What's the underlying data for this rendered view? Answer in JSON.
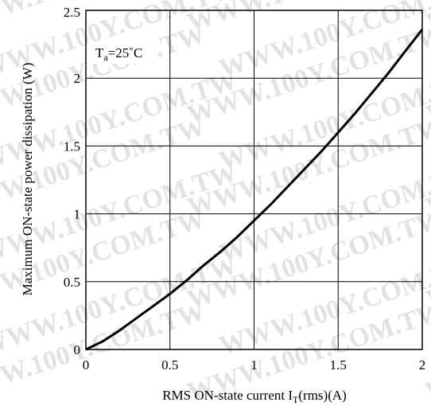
{
  "chart_data": {
    "type": "line",
    "title": "",
    "xlabel": "RMS ON-state current I",
    "xlabel_sub": "T",
    "xlabel_suffix": "(rms)(A)",
    "ylabel": "Maximum ON-state power dissipation (W)",
    "xlim": [
      0,
      2
    ],
    "ylim": [
      0,
      2.5
    ],
    "x_ticks": [
      "0",
      "0.5",
      "1",
      "1.5",
      "2"
    ],
    "y_ticks": [
      "0",
      "0.5",
      "1",
      "1.5",
      "2",
      "2.5"
    ],
    "grid": true,
    "annotation": {
      "main": "T",
      "sub": "a",
      "rest": "=25˚C"
    },
    "watermark": "WWW.100Y.COM.TW",
    "series": [
      {
        "x": [
          0,
          0.1,
          0.2,
          0.3,
          0.4,
          0.5,
          0.6,
          0.7,
          0.8,
          0.9,
          1.0,
          1.1,
          1.2,
          1.3,
          1.4,
          1.5,
          1.6,
          1.7,
          1.8,
          1.9,
          2.0
        ],
        "y": [
          0,
          0.06,
          0.14,
          0.23,
          0.32,
          0.41,
          0.51,
          0.62,
          0.72,
          0.83,
          0.95,
          1.07,
          1.2,
          1.33,
          1.46,
          1.6,
          1.74,
          1.89,
          2.04,
          2.2,
          2.36
        ]
      }
    ]
  }
}
